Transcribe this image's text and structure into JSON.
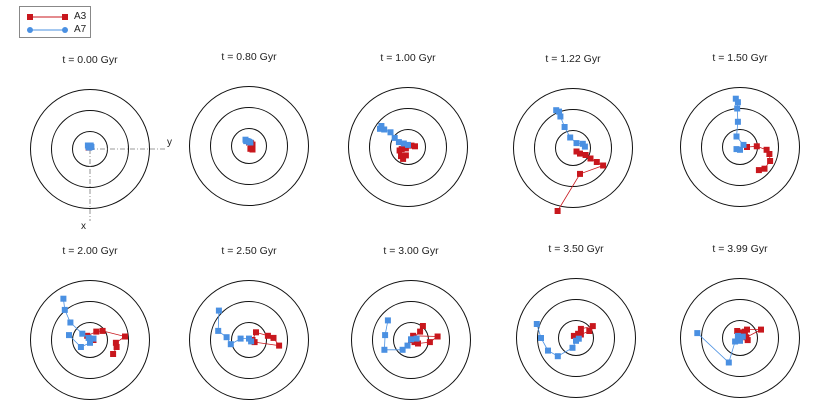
{
  "legend": {
    "entries": [
      {
        "name": "A3",
        "color": "#c8171d",
        "marker": "square"
      },
      {
        "name": "A7",
        "color": "#4a90e2",
        "marker": "circle"
      }
    ]
  },
  "axes": {
    "x_label": "x",
    "y_label": "y"
  },
  "colors": {
    "ring": "#111111",
    "axis": "#777777"
  },
  "chart_data": {
    "type": "scatter",
    "rings": [
      0.25,
      0.55,
      0.85
    ],
    "panels": [
      {
        "title": "t = 0.00 Gyr",
        "A3": [
          [
            -0.02,
            0.02
          ],
          [
            0.01,
            0.03
          ]
        ],
        "A7": [
          [
            -0.02,
            0.03
          ],
          [
            0.0,
            0.04
          ],
          [
            0.02,
            0.03
          ],
          [
            -0.01,
            0.02
          ],
          [
            0.01,
            0.05
          ],
          [
            -0.03,
            0.05
          ]
        ]
      },
      {
        "title": "t = 0.80 Gyr",
        "A3": [
          [
            0.0,
            0.05
          ],
          [
            0.03,
            0.04
          ],
          [
            0.05,
            0.02
          ],
          [
            0.02,
            -0.04
          ],
          [
            0.05,
            -0.05
          ]
        ],
        "A7": [
          [
            -0.05,
            0.09
          ],
          [
            -0.02,
            0.07
          ],
          [
            0.0,
            0.06
          ],
          [
            0.02,
            0.05
          ],
          [
            -0.04,
            0.07
          ]
        ]
      },
      {
        "title": "t = 1.00 Gyr",
        "A3": [
          [
            0.05,
            0.02
          ],
          [
            0.1,
            0.01
          ],
          [
            -0.03,
            -0.02
          ],
          [
            -0.09,
            -0.03
          ],
          [
            -0.12,
            -0.05
          ],
          [
            -0.1,
            -0.13
          ],
          [
            -0.07,
            -0.17
          ],
          [
            -0.03,
            -0.12
          ]
        ],
        "A7": [
          [
            -0.4,
            0.26
          ],
          [
            -0.38,
            0.3
          ],
          [
            -0.34,
            0.25
          ],
          [
            -0.25,
            0.21
          ],
          [
            -0.19,
            0.13
          ],
          [
            -0.13,
            0.07
          ],
          [
            -0.06,
            0.05
          ],
          [
            0.0,
            0.03
          ]
        ]
      },
      {
        "title": "t = 1.22 Gyr",
        "A3": [
          [
            0.05,
            -0.05
          ],
          [
            0.1,
            -0.08
          ],
          [
            0.18,
            -0.1
          ],
          [
            0.25,
            -0.15
          ],
          [
            0.34,
            -0.2
          ],
          [
            0.43,
            -0.25
          ],
          [
            0.1,
            -0.37
          ],
          [
            -0.22,
            -0.9
          ]
        ],
        "A7": [
          [
            -0.24,
            0.54
          ],
          [
            -0.2,
            0.52
          ],
          [
            -0.18,
            0.45
          ],
          [
            -0.12,
            0.3
          ],
          [
            -0.04,
            0.15
          ],
          [
            0.05,
            0.07
          ],
          [
            0.14,
            0.06
          ],
          [
            0.17,
            0.02
          ]
        ]
      },
      {
        "title": "t = 1.50 Gyr",
        "A3": [
          [
            0.1,
            0.0
          ],
          [
            0.24,
            0.01
          ],
          [
            0.38,
            -0.04
          ],
          [
            0.42,
            -0.1
          ],
          [
            0.43,
            -0.2
          ],
          [
            0.35,
            -0.31
          ],
          [
            0.27,
            -0.33
          ]
        ],
        "A7": [
          [
            -0.06,
            0.69
          ],
          [
            -0.03,
            0.64
          ],
          [
            -0.04,
            0.55
          ],
          [
            -0.03,
            0.36
          ],
          [
            -0.05,
            0.15
          ],
          [
            0.05,
            0.03
          ],
          [
            0.0,
            -0.04
          ],
          [
            -0.05,
            -0.03
          ]
        ]
      },
      {
        "title": "t = 2.00 Gyr",
        "A3": [
          [
            0.05,
            0.0
          ],
          [
            -0.04,
            0.06
          ],
          [
            0.09,
            0.12
          ],
          [
            0.18,
            0.13
          ],
          [
            0.5,
            0.05
          ],
          [
            0.37,
            -0.04
          ],
          [
            0.38,
            -0.1
          ],
          [
            0.33,
            -0.2
          ]
        ],
        "A7": [
          [
            -0.38,
            0.59
          ],
          [
            -0.36,
            0.43
          ],
          [
            -0.28,
            0.25
          ],
          [
            -0.11,
            0.09
          ],
          [
            -0.02,
            0.03
          ],
          [
            0.05,
            0.02
          ],
          [
            0.0,
            -0.04
          ],
          [
            -0.13,
            -0.1
          ],
          [
            -0.3,
            0.07
          ]
        ]
      },
      {
        "title": "t = 2.50 Gyr",
        "A3": [
          [
            0.05,
            0.0
          ],
          [
            0.1,
            0.11
          ],
          [
            0.27,
            0.06
          ],
          [
            0.35,
            0.03
          ],
          [
            0.43,
            -0.08
          ],
          [
            0.08,
            -0.03
          ]
        ],
        "A7": [
          [
            -0.43,
            0.42
          ],
          [
            -0.44,
            0.13
          ],
          [
            -0.32,
            0.04
          ],
          [
            -0.26,
            -0.06
          ],
          [
            -0.12,
            0.02
          ],
          [
            0.0,
            0.02
          ],
          [
            0.03,
            -0.02
          ]
        ]
      },
      {
        "title": "t = 3.00 Gyr",
        "A3": [
          [
            0.17,
            0.2
          ],
          [
            0.13,
            0.12
          ],
          [
            0.0,
            0.0
          ],
          [
            0.03,
            0.06
          ],
          [
            0.38,
            0.05
          ],
          [
            0.27,
            -0.03
          ],
          [
            0.1,
            -0.05
          ],
          [
            0.05,
            -0.03
          ]
        ],
        "A7": [
          [
            -0.33,
            0.28
          ],
          [
            -0.37,
            0.07
          ],
          [
            -0.38,
            -0.14
          ],
          [
            -0.12,
            -0.14
          ],
          [
            -0.05,
            -0.08
          ],
          [
            0.0,
            0.01
          ],
          [
            0.08,
            0.02
          ]
        ]
      },
      {
        "title": "t = 3.50 Gyr",
        "A3": [
          [
            0.24,
            0.17
          ],
          [
            0.07,
            0.13
          ],
          [
            0.03,
            0.06
          ],
          [
            -0.03,
            0.03
          ],
          [
            0.03,
            0.0
          ],
          [
            0.07,
            0.05
          ],
          [
            0.19,
            0.1
          ]
        ],
        "A7": [
          [
            -0.56,
            0.2
          ],
          [
            -0.5,
            0.0
          ],
          [
            -0.4,
            -0.18
          ],
          [
            -0.26,
            -0.26
          ],
          [
            -0.05,
            -0.14
          ],
          [
            0.0,
            -0.04
          ],
          [
            0.04,
            -0.01
          ]
        ]
      },
      {
        "title": "t = 3.99 Gyr",
        "A3": [
          [
            0.0,
            0.08
          ],
          [
            -0.04,
            0.1
          ],
          [
            0.07,
            0.09
          ],
          [
            0.1,
            0.12
          ],
          [
            0.3,
            0.12
          ],
          [
            0.09,
            0.01
          ],
          [
            0.11,
            -0.03
          ]
        ],
        "A7": [
          [
            -0.61,
            0.07
          ],
          [
            -0.16,
            -0.35
          ],
          [
            -0.07,
            -0.05
          ],
          [
            -0.03,
            0.03
          ],
          [
            0.04,
            0.02
          ],
          [
            0.0,
            -0.04
          ]
        ]
      }
    ]
  }
}
